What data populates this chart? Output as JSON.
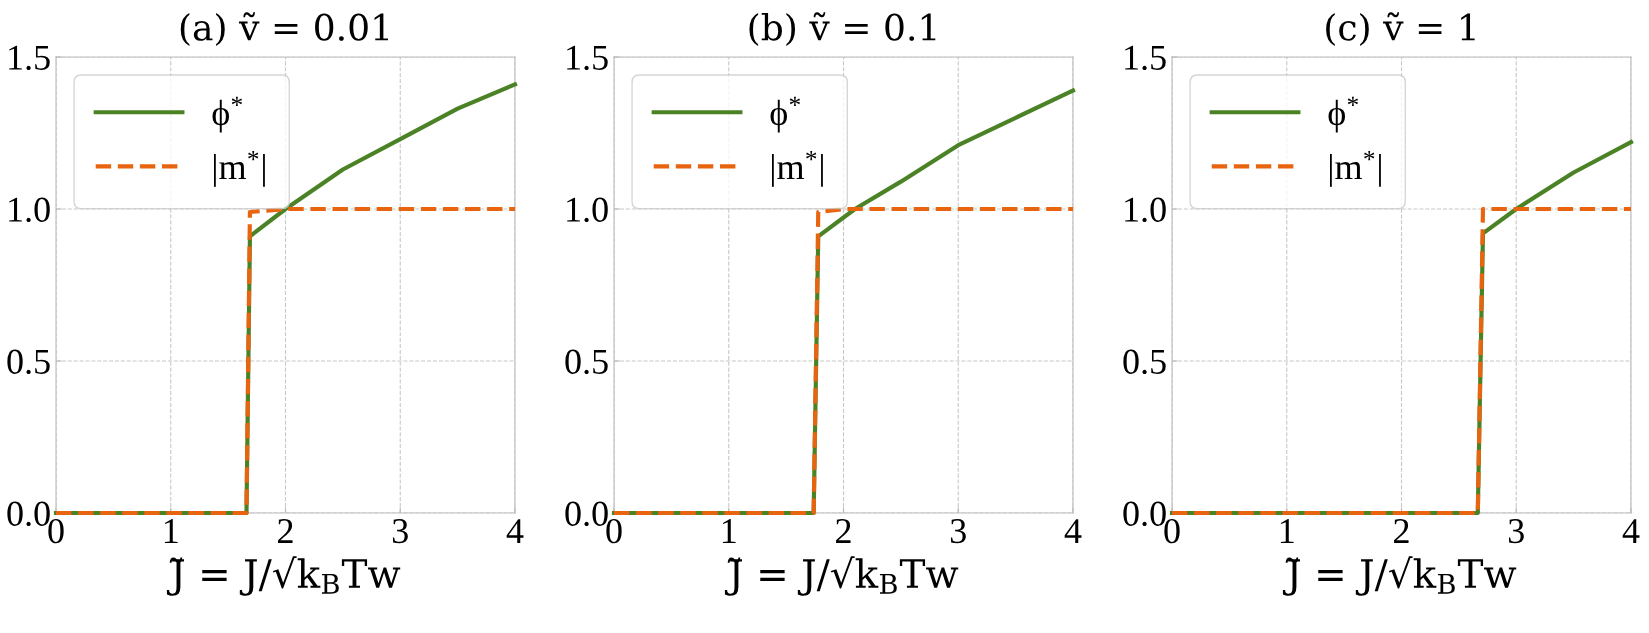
{
  "chart_data": [
    {
      "type": "line",
      "title": "(a) ṽ = 0.01",
      "xlabel": "J̃ = J/√k$_{B}$Tw",
      "xlim": [
        0,
        4
      ],
      "ylim": [
        0,
        1.5
      ],
      "xticks": [
        0,
        1,
        2,
        3,
        4
      ],
      "yticks": [
        {
          "value": 0,
          "label": "0.0"
        },
        {
          "value": 0.5,
          "label": "0.5"
        },
        {
          "value": 1,
          "label": "1.0"
        },
        {
          "value": 1.5,
          "label": "1.5"
        }
      ],
      "grid": true,
      "legend": "top left",
      "series": [
        {
          "name": "ϕ$^{*}$",
          "color": "#4b8226",
          "line_style": "solid",
          "x": [
            0,
            1.66,
            1.69,
            2.0,
            2.5,
            3.0,
            3.5,
            4.0
          ],
          "values": [
            0,
            0,
            0.91,
            1.0,
            1.13,
            1.23,
            1.33,
            1.41
          ]
        },
        {
          "name": "|m$^{*}$|",
          "color": "#e8640f",
          "line_style": "dashed",
          "x": [
            0,
            1.66,
            1.69,
            2.0,
            4.0
          ],
          "values": [
            0,
            0,
            0.99,
            1.0,
            1.0
          ]
        }
      ]
    },
    {
      "type": "line",
      "title": "(b) ṽ = 0.1",
      "xlabel": "J̃ = J/√k$_{B}$Tw",
      "xlim": [
        0,
        4
      ],
      "ylim": [
        0,
        1.5
      ],
      "xticks": [
        0,
        1,
        2,
        3,
        4
      ],
      "yticks": [
        {
          "value": 0,
          "label": "0.0"
        },
        {
          "value": 0.5,
          "label": "0.5"
        },
        {
          "value": 1,
          "label": "1.0"
        },
        {
          "value": 1.5,
          "label": "1.5"
        }
      ],
      "grid": true,
      "legend": "top left",
      "series": [
        {
          "name": "ϕ$^{*}$",
          "color": "#4b8226",
          "line_style": "solid",
          "x": [
            0,
            1.74,
            1.78,
            2.1,
            2.5,
            3.0,
            3.5,
            4.0
          ],
          "values": [
            0,
            0,
            0.91,
            1.0,
            1.09,
            1.21,
            1.3,
            1.39
          ]
        },
        {
          "name": "|m$^{*}$|",
          "color": "#e8640f",
          "line_style": "dashed",
          "x": [
            0,
            1.74,
            1.78,
            2.0,
            4.0
          ],
          "values": [
            0,
            0,
            0.99,
            1.0,
            1.0
          ]
        }
      ]
    },
    {
      "type": "line",
      "title": "(c) ṽ = 1",
      "xlabel": "J̃ = J/√k$_{B}$Tw",
      "xlim": [
        0,
        4
      ],
      "ylim": [
        0,
        1.5
      ],
      "xticks": [
        0,
        1,
        2,
        3,
        4
      ],
      "yticks": [
        {
          "value": 0,
          "label": "0.0"
        },
        {
          "value": 0.5,
          "label": "0.5"
        },
        {
          "value": 1,
          "label": "1.0"
        },
        {
          "value": 1.5,
          "label": "1.5"
        }
      ],
      "grid": true,
      "legend": "top left",
      "series": [
        {
          "name": "ϕ$^{*}$",
          "color": "#4b8226",
          "line_style": "solid",
          "x": [
            0,
            2.665,
            2.71,
            3.0,
            3.5,
            4.0
          ],
          "values": [
            0,
            0,
            0.92,
            1.0,
            1.12,
            1.22
          ]
        },
        {
          "name": "|m$^{*}$|",
          "color": "#e8640f",
          "line_style": "dashed",
          "x": [
            0,
            2.665,
            2.71,
            4.0
          ],
          "values": [
            0,
            0,
            1.0,
            1.0
          ]
        }
      ]
    }
  ]
}
